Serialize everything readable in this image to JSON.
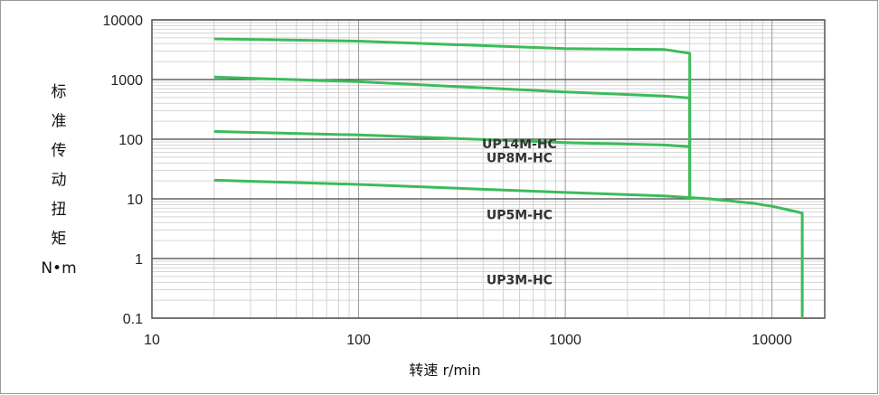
{
  "chart_data": {
    "type": "line",
    "xlabel": "转速 r/min",
    "ylabel_chars": [
      "标",
      "准",
      "传",
      "动",
      "扭",
      "矩",
      "N•m"
    ],
    "x_scale": "log",
    "y_scale": "log",
    "xlim": [
      10,
      18000
    ],
    "ylim": [
      0.1,
      10000
    ],
    "x_ticks": [
      "10",
      "100",
      "1000",
      "10000"
    ],
    "y_ticks": [
      "0.1",
      "1",
      "10",
      "100",
      "1000",
      "10000"
    ],
    "grid": true,
    "colors": {
      "series": "#3dbb5a",
      "major_grid": "#444444",
      "minor_grid": "#c8c8c8",
      "frame": "#555555"
    },
    "series": [
      {
        "name": "UP14M-HC",
        "points": [
          [
            20,
            4800
          ],
          [
            100,
            4400
          ],
          [
            500,
            3600
          ],
          [
            1000,
            3300
          ],
          [
            3000,
            3200
          ],
          [
            4000,
            2750
          ],
          [
            4000,
            11
          ]
        ]
      },
      {
        "name": "UP8M-HC",
        "points": [
          [
            20,
            1100
          ],
          [
            100,
            920
          ],
          [
            1000,
            620
          ],
          [
            3000,
            530
          ],
          [
            4000,
            490
          ],
          [
            4000,
            11
          ]
        ]
      },
      {
        "name": "UP5M-HC",
        "points": [
          [
            20,
            135
          ],
          [
            100,
            118
          ],
          [
            1000,
            88
          ],
          [
            3000,
            80
          ],
          [
            4000,
            75
          ]
        ]
      },
      {
        "name": "UP3M-HC",
        "points": [
          [
            20,
            20.5
          ],
          [
            100,
            17.5
          ],
          [
            1000,
            12.8
          ],
          [
            3000,
            11.2
          ],
          [
            5000,
            10
          ],
          [
            8000,
            8.5
          ],
          [
            10000,
            7.5
          ],
          [
            14000,
            5.8
          ],
          [
            14000,
            0.1
          ]
        ]
      }
    ]
  }
}
